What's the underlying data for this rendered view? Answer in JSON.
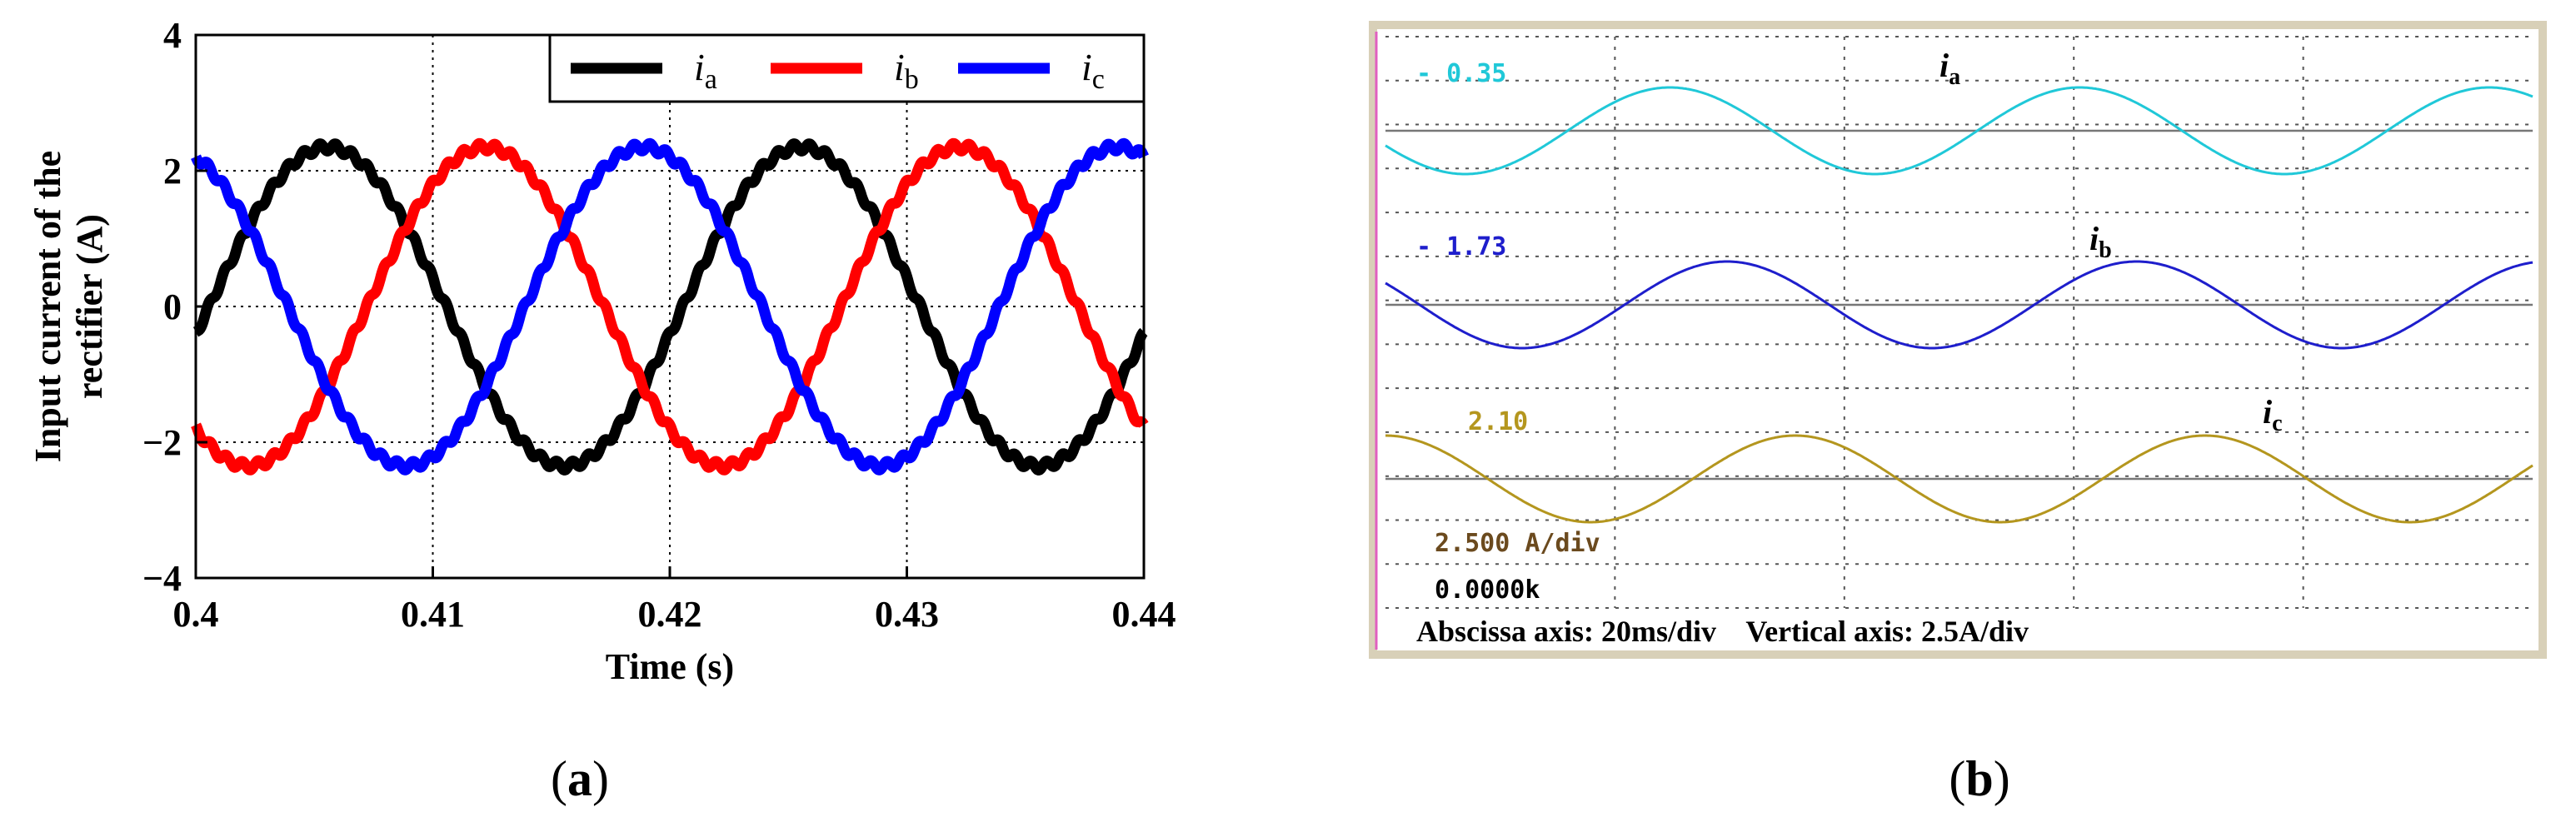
{
  "chart_data": [
    {
      "panel": "(a)",
      "type": "line",
      "title": "",
      "xlabel": "Time (s)",
      "ylabel_lines": [
        "Input current of the",
        "rectifier (A)"
      ],
      "xlim": [
        0.4,
        0.44
      ],
      "ylim": [
        -4,
        4
      ],
      "xticks": [
        0.4,
        0.41,
        0.42,
        0.43,
        0.44
      ],
      "xtick_labels": [
        "0.4",
        "0.41",
        "0.42",
        "0.43",
        "0.44"
      ],
      "yticks": [
        4,
        2,
        0,
        -2,
        -4
      ],
      "ytick_labels": [
        "4",
        "2",
        "0",
        "−2",
        "−4"
      ],
      "grid": "dotted",
      "legend_position": "top-right",
      "legend": [
        {
          "italic": "i",
          "sub": "a"
        },
        {
          "italic": "i",
          "sub": "b"
        },
        {
          "italic": "i",
          "sub": "c"
        }
      ],
      "series": [
        {
          "name": "ia",
          "color": "#000000",
          "amplitude": 2.35,
          "frequency_hz": 50,
          "phase_deg": -10
        },
        {
          "name": "ib",
          "color": "#ff0000",
          "amplitude": 2.35,
          "frequency_hz": 50,
          "phase_deg": -130
        },
        {
          "name": "ic",
          "color": "#0000ff",
          "amplitude": 2.35,
          "frequency_hz": 50,
          "phase_deg": 110
        }
      ]
    },
    {
      "panel": "(b)",
      "type": "line",
      "title": "",
      "traces": [
        {
          "name": "ia",
          "label_italic": "i",
          "label_sub": "a",
          "readout": "- 0.35",
          "color": "#20c8d8",
          "cycles": 2.8,
          "phase_deg": 200
        },
        {
          "name": "ib",
          "label_italic": "i",
          "label_sub": "b",
          "readout": "- 1.73",
          "color": "#1e1ecc",
          "cycles": 2.8,
          "phase_deg": 150
        },
        {
          "name": "ic",
          "label_italic": "i",
          "label_sub": "c",
          "readout": "2.10",
          "color": "#b4961e",
          "cycles": 2.8,
          "phase_deg": 90
        }
      ],
      "scale_text": "2.500 A/div",
      "time_text": "0.0000k",
      "footer_text": "Abscissa axis: 20ms/div    Vertical axis: 2.5A/div"
    }
  ],
  "panel_labels": {
    "a_letter": "a",
    "b_letter": "b"
  }
}
